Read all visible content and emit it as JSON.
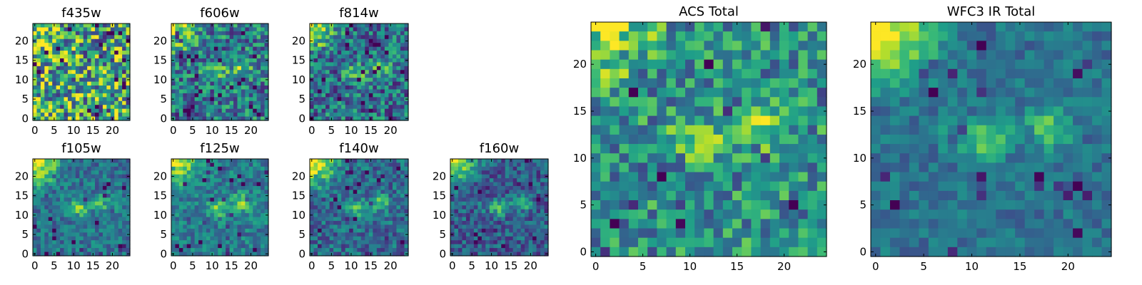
{
  "colormap": {
    "name": "viridis",
    "stops": [
      "#440154",
      "#482878",
      "#3e4989",
      "#31688e",
      "#26828e",
      "#1f9e89",
      "#35b779",
      "#6ece58",
      "#b5de2b",
      "#fde725"
    ]
  },
  "chart_data": [
    {
      "type": "heatmap",
      "title": "f435w",
      "xlim": [
        -0.5,
        24.5
      ],
      "ylim": [
        -0.5,
        24.5
      ],
      "xticks": [
        0,
        5,
        10,
        15,
        20
      ],
      "yticks": [
        0,
        5,
        10,
        15,
        20
      ],
      "grid": false,
      "source_peaks": false,
      "corner": 0.25,
      "center": 0.6,
      "spread": 0.8,
      "texture": 0.9,
      "seed": 3
    },
    {
      "type": "heatmap",
      "title": "f606w",
      "xlim": [
        -0.5,
        24.5
      ],
      "ylim": [
        -0.5,
        24.5
      ],
      "xticks": [
        0,
        5,
        10,
        15,
        20
      ],
      "yticks": [
        0,
        5,
        10,
        15,
        20
      ],
      "grid": false,
      "source_peaks": true,
      "corner": 0.55,
      "center": 0.42,
      "spread": 0.55,
      "texture": 0.6,
      "seed": 7
    },
    {
      "type": "heatmap",
      "title": "f814w",
      "xlim": [
        -0.5,
        24.5
      ],
      "ylim": [
        -0.5,
        24.5
      ],
      "xticks": [
        0,
        5,
        10,
        15,
        20
      ],
      "yticks": [
        0,
        5,
        10,
        15,
        20
      ],
      "grid": false,
      "source_peaks": true,
      "corner": 0.55,
      "center": 0.38,
      "spread": 0.55,
      "texture": 0.6,
      "seed": 11
    },
    {
      "type": "heatmap",
      "title": "f105w",
      "xlim": [
        -0.5,
        24.5
      ],
      "ylim": [
        -0.5,
        24.5
      ],
      "xticks": [
        0,
        5,
        10,
        15,
        20
      ],
      "yticks": [
        0,
        5,
        10,
        15,
        20
      ],
      "grid": false,
      "source_peaks": true,
      "corner": 0.7,
      "center": 0.38,
      "spread": 0.35,
      "texture": 0.35,
      "seed": 13
    },
    {
      "type": "heatmap",
      "title": "f125w",
      "xlim": [
        -0.5,
        24.5
      ],
      "ylim": [
        -0.5,
        24.5
      ],
      "xticks": [
        0,
        5,
        10,
        15,
        20
      ],
      "yticks": [
        0,
        5,
        10,
        15,
        20
      ],
      "grid": false,
      "source_peaks": true,
      "corner": 0.6,
      "center": 0.42,
      "spread": 0.35,
      "texture": 0.35,
      "seed": 17
    },
    {
      "type": "heatmap",
      "title": "f140w",
      "xlim": [
        -0.5,
        24.5
      ],
      "ylim": [
        -0.5,
        24.5
      ],
      "xticks": [
        0,
        5,
        10,
        15,
        20
      ],
      "yticks": [
        0,
        5,
        10,
        15,
        20
      ],
      "grid": false,
      "source_peaks": true,
      "corner": 0.75,
      "center": 0.35,
      "spread": 0.4,
      "texture": 0.4,
      "seed": 19
    },
    {
      "type": "heatmap",
      "title": "f160w",
      "xlim": [
        -0.5,
        24.5
      ],
      "ylim": [
        -0.5,
        24.5
      ],
      "xticks": [
        0,
        5,
        10,
        15,
        20
      ],
      "yticks": [
        0,
        5,
        10,
        15,
        20
      ],
      "grid": false,
      "source_peaks": true,
      "corner": 0.7,
      "center": 0.3,
      "spread": 0.35,
      "texture": 0.4,
      "seed": 23
    },
    {
      "type": "heatmap",
      "title": "ACS Total",
      "xlim": [
        -0.5,
        24.5
      ],
      "ylim": [
        -0.5,
        24.5
      ],
      "xticks": [
        0,
        5,
        10,
        15,
        20
      ],
      "yticks": [
        0,
        5,
        10,
        15,
        20
      ],
      "grid": false,
      "source_peaks": true,
      "corner": 0.5,
      "center": 0.5,
      "spread": 0.45,
      "texture": 0.55,
      "seed": 29
    },
    {
      "type": "heatmap",
      "title": "WFC3 IR Total",
      "xlim": [
        -0.5,
        24.5
      ],
      "ylim": [
        -0.5,
        24.5
      ],
      "xticks": [
        0,
        5,
        10,
        15,
        20
      ],
      "yticks": [
        0,
        5,
        10,
        15,
        20
      ],
      "grid": false,
      "source_peaks": true,
      "corner": 0.72,
      "center": 0.38,
      "spread": 0.3,
      "texture": 0.25,
      "seed": 31
    }
  ]
}
